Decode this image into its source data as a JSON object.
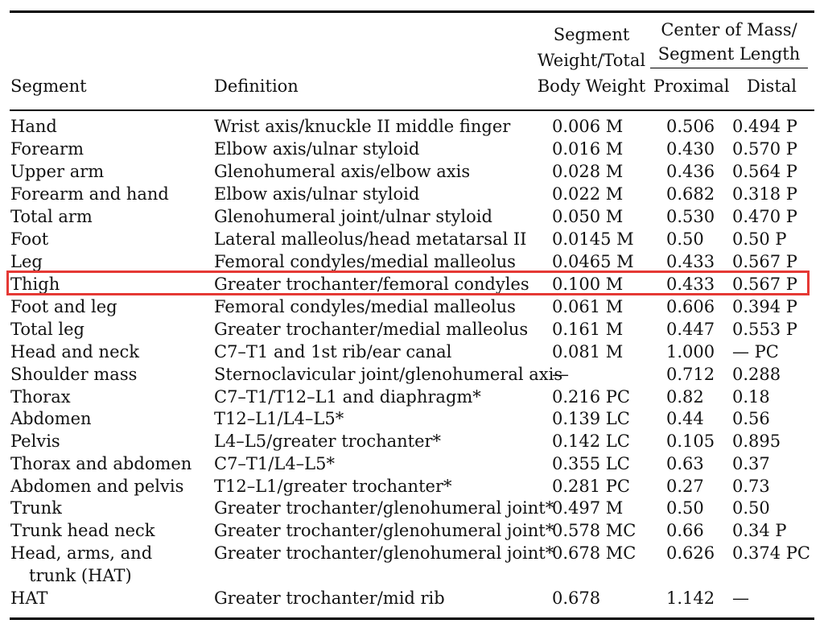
{
  "highlight_color": "#e53935",
  "header": {
    "segment": "Segment",
    "definition": "Definition",
    "weight_line1": "Segment",
    "weight_line2": "Weight/Total",
    "weight_line3": "Body Weight",
    "com_line1": "Center of Mass/",
    "com_line2": "Segment Length",
    "proximal": "Proximal",
    "distal": "Distal"
  },
  "rows": [
    {
      "segment": "Hand",
      "definition": "Wrist axis/knuckle II middle finger",
      "weight": "0.006 M",
      "proximal": "0.506",
      "distal": "0.494 P"
    },
    {
      "segment": "Forearm",
      "definition": "Elbow axis/ulnar styloid",
      "weight": "0.016 M",
      "proximal": "0.430",
      "distal": "0.570 P"
    },
    {
      "segment": "Upper arm",
      "definition": "Glenohumeral axis/elbow axis",
      "weight": "0.028 M",
      "proximal": "0.436",
      "distal": "0.564 P"
    },
    {
      "segment": "Forearm and hand",
      "definition": "Elbow axis/ulnar styloid",
      "weight": "0.022 M",
      "proximal": "0.682",
      "distal": "0.318 P"
    },
    {
      "segment": "Total arm",
      "definition": "Glenohumeral joint/ulnar styloid",
      "weight": "0.050 M",
      "proximal": "0.530",
      "distal": "0.470 P"
    },
    {
      "segment": "Foot",
      "definition": "Lateral malleolus/head metatarsal II",
      "weight": "0.0145 M",
      "proximal": "0.50",
      "distal": "0.50 P"
    },
    {
      "segment": "Leg",
      "definition": "Femoral condyles/medial malleolus",
      "weight": "0.0465 M",
      "proximal": "0.433",
      "distal": "0.567 P"
    },
    {
      "segment": "Thigh",
      "definition": "Greater trochanter/femoral condyles",
      "weight": "0.100 M",
      "proximal": "0.433",
      "distal": "0.567 P"
    },
    {
      "segment": "Foot and leg",
      "definition": "Femoral condyles/medial malleolus",
      "weight": "0.061 M",
      "proximal": "0.606",
      "distal": "0.394 P"
    },
    {
      "segment": "Total leg",
      "definition": "Greater trochanter/medial malleolus",
      "weight": "0.161 M",
      "proximal": "0.447",
      "distal": "0.553 P"
    },
    {
      "segment": "Head and neck",
      "definition": "C7–T1 and 1st rib/ear canal",
      "weight": "0.081 M",
      "proximal": "1.000",
      "distal": "— PC"
    },
    {
      "segment": "Shoulder mass",
      "definition": "Sternoclavicular joint/glenohumeral axis",
      "weight": "—",
      "proximal": "0.712",
      "distal": "0.288"
    },
    {
      "segment": "Thorax",
      "definition": "C7–T1/T12–L1 and diaphragm*",
      "weight": "0.216 PC",
      "proximal": "0.82",
      "distal": "0.18"
    },
    {
      "segment": "Abdomen",
      "definition": "T12–L1/L4–L5*",
      "weight": "0.139 LC",
      "proximal": "0.44",
      "distal": "0.56"
    },
    {
      "segment": "Pelvis",
      "definition": "L4–L5/greater trochanter*",
      "weight": "0.142 LC",
      "proximal": "0.105",
      "distal": "0.895"
    },
    {
      "segment": "Thorax and abdomen",
      "definition": "C7–T1/L4–L5*",
      "weight": "0.355 LC",
      "proximal": "0.63",
      "distal": "0.37"
    },
    {
      "segment": "Abdomen and pelvis",
      "definition": "T12–L1/greater trochanter*",
      "weight": "0.281 PC",
      "proximal": "0.27",
      "distal": "0.73"
    },
    {
      "segment": "Trunk",
      "definition": "Greater trochanter/glenohumeral joint*",
      "weight": "0.497 M",
      "proximal": "0.50",
      "distal": "0.50"
    },
    {
      "segment": "Trunk head neck",
      "definition": "Greater trochanter/glenohumeral joint*",
      "weight": "0.578 MC",
      "proximal": "0.66",
      "distal": "0.34 P"
    },
    {
      "segment": "Head, arms, and",
      "segment_line2": "trunk (HAT)",
      "definition": "Greater trochanter/glenohumeral joint*",
      "weight": "0.678 MC",
      "proximal": "0.626",
      "distal": "0.374 PC"
    },
    {
      "segment": "HAT",
      "definition": "Greater trochanter/mid rib",
      "weight": "0.678",
      "proximal": "1.142",
      "distal": "—"
    }
  ]
}
